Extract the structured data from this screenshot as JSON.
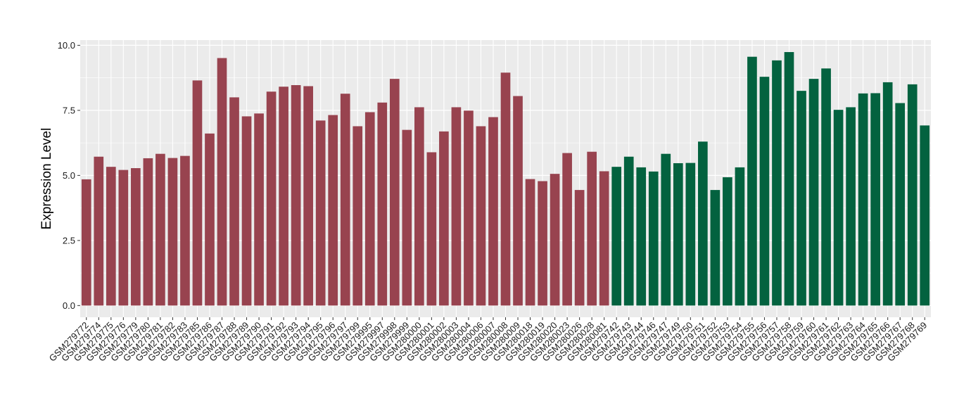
{
  "chart_data": {
    "type": "bar",
    "title": "",
    "xlabel": "",
    "ylabel": "Expression Level",
    "ylim": [
      -0.45,
      10.2
    ],
    "yticks": [
      0.0,
      2.5,
      5.0,
      7.5,
      10.0
    ],
    "ytick_labels": [
      "0.0",
      "2.5",
      "5.0",
      "7.5",
      "10.0"
    ],
    "grid": true,
    "legend": "none",
    "colors": {
      "group1": "#98434F",
      "group2": "#03623F",
      "panel": "#EBEBEB",
      "gridline": "#FFFFFF"
    },
    "categories": [
      "GSM279772",
      "GSM279774",
      "GSM279775",
      "GSM279776",
      "GSM279779",
      "GSM279780",
      "GSM279781",
      "GSM279782",
      "GSM279783",
      "GSM279785",
      "GSM279786",
      "GSM279787",
      "GSM279788",
      "GSM279789",
      "GSM279790",
      "GSM279791",
      "GSM279792",
      "GSM279793",
      "GSM279794",
      "GSM279795",
      "GSM279796",
      "GSM279797",
      "GSM279799",
      "GSM279995",
      "GSM279997",
      "GSM279998",
      "GSM279999",
      "GSM280000",
      "GSM280001",
      "GSM280002",
      "GSM280003",
      "GSM280004",
      "GSM280006",
      "GSM280007",
      "GSM280008",
      "GSM280009",
      "GSM280018",
      "GSM280019",
      "GSM280020",
      "GSM280023",
      "GSM280026",
      "GSM280028",
      "GSM280081",
      "GSM279742",
      "GSM279743",
      "GSM279744",
      "GSM279746",
      "GSM279747",
      "GSM279749",
      "GSM279750",
      "GSM279751",
      "GSM279752",
      "GSM279753",
      "GSM279754",
      "GSM279755",
      "GSM279756",
      "GSM279757",
      "GSM279758",
      "GSM279759",
      "GSM279760",
      "GSM279761",
      "GSM279762",
      "GSM279763",
      "GSM279764",
      "GSM279765",
      "GSM279766",
      "GSM279767",
      "GSM279768",
      "GSM279769"
    ],
    "values": [
      4.85,
      5.72,
      5.33,
      5.21,
      5.28,
      5.66,
      5.83,
      5.67,
      5.75,
      8.65,
      6.61,
      9.51,
      8.0,
      7.27,
      7.38,
      8.22,
      8.41,
      8.47,
      8.43,
      7.11,
      7.32,
      8.14,
      6.89,
      7.43,
      7.8,
      8.71,
      6.75,
      7.62,
      5.89,
      6.69,
      7.62,
      7.49,
      6.89,
      7.24,
      8.95,
      8.05,
      4.86,
      4.78,
      5.06,
      5.86,
      4.44,
      5.91,
      5.16,
      5.33,
      5.72,
      5.31,
      5.15,
      5.83,
      5.47,
      5.48,
      6.3,
      4.44,
      4.93,
      5.31,
      9.56,
      8.79,
      9.42,
      9.74,
      8.25,
      8.71,
      9.11,
      7.52,
      7.62,
      8.15,
      8.16,
      8.58,
      7.78,
      8.5,
      6.92
    ],
    "groups": [
      1,
      1,
      1,
      1,
      1,
      1,
      1,
      1,
      1,
      1,
      1,
      1,
      1,
      1,
      1,
      1,
      1,
      1,
      1,
      1,
      1,
      1,
      1,
      1,
      1,
      1,
      1,
      1,
      1,
      1,
      1,
      1,
      1,
      1,
      1,
      1,
      1,
      1,
      1,
      1,
      1,
      1,
      1,
      2,
      2,
      2,
      2,
      2,
      2,
      2,
      2,
      2,
      2,
      2,
      2,
      2,
      2,
      2,
      2,
      2,
      2,
      2,
      2,
      2,
      2,
      2,
      2,
      2,
      2
    ]
  }
}
